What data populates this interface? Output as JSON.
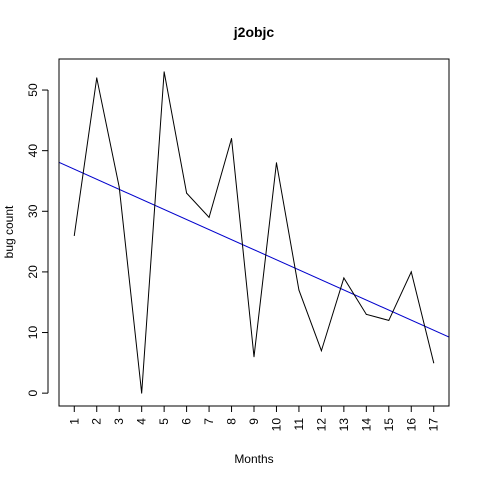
{
  "chart_data": {
    "type": "line",
    "title": "j2objc",
    "xlabel": "Months",
    "ylabel": "bug count",
    "x": [
      1,
      2,
      3,
      4,
      5,
      6,
      7,
      8,
      9,
      10,
      11,
      12,
      13,
      14,
      15,
      16,
      17
    ],
    "x_tick_labels": [
      "1",
      "2",
      "3",
      "4",
      "5",
      "6",
      "7",
      "8",
      "9",
      "10",
      "11",
      "12",
      "13",
      "14",
      "15",
      "16",
      "17"
    ],
    "y_ticks": [
      0,
      10,
      20,
      30,
      40,
      50
    ],
    "y_tick_labels": [
      "0",
      "10",
      "20",
      "30",
      "40",
      "50"
    ],
    "xlim": [
      0.32,
      17.68
    ],
    "ylim": [
      -2.12,
      55.12
    ],
    "grid": false,
    "series": [
      {
        "values": [
          26,
          52,
          34,
          0,
          53,
          33,
          29,
          42,
          6,
          38,
          17,
          7,
          19,
          13,
          12,
          20,
          5
        ],
        "color": "#000000"
      }
    ],
    "trend_line": {
      "color": "#0000cc",
      "intercept": 38.6,
      "slope": -1.66
    }
  }
}
